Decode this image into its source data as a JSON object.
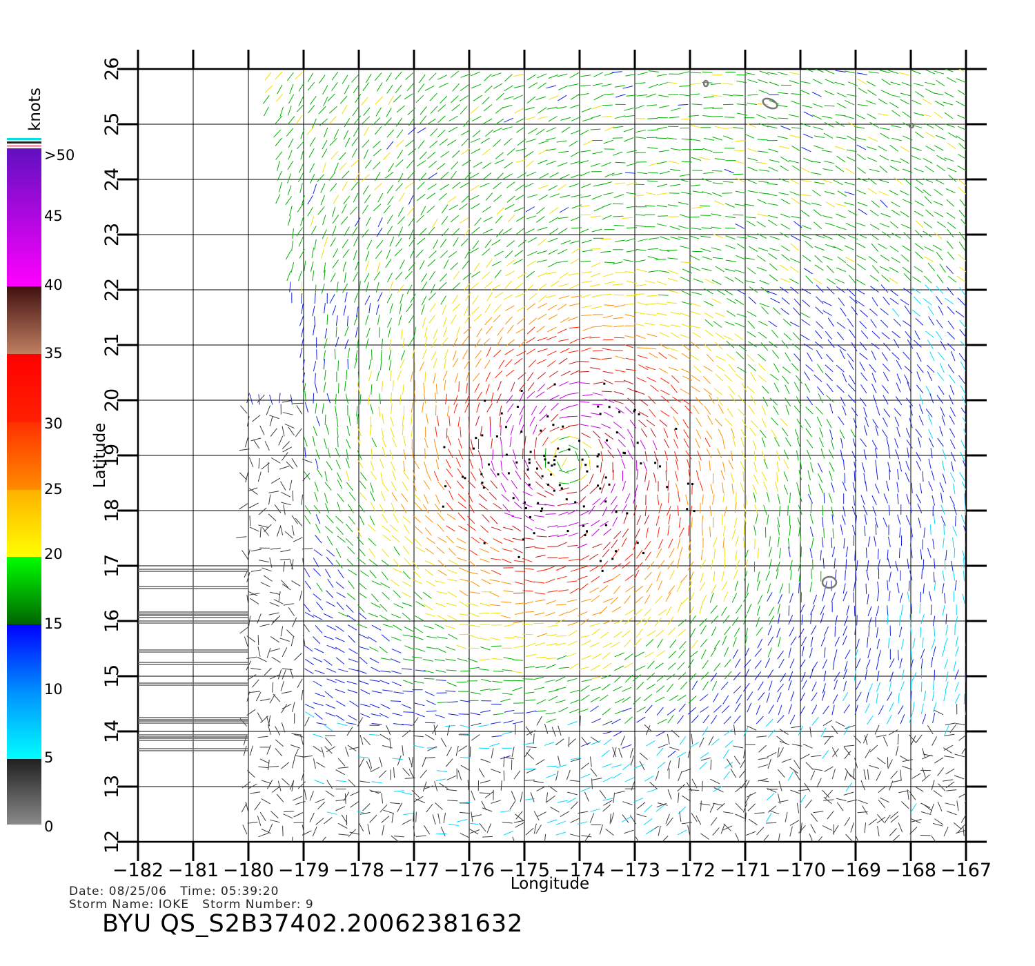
{
  "colorbar": {
    "unit": "knots",
    "labels": [
      ">50",
      "45",
      "40",
      "35",
      "30",
      "25",
      "20",
      "15",
      "10",
      "5",
      "0"
    ],
    "colors": {
      "gray_low": "#808080",
      "gray_high": "#202020",
      "cyan": "#00ffff",
      "blue": "#0000ff",
      "dark_green": "#006400",
      "green": "#00ff00",
      "yellow": "#ffff00",
      "orange": "#ff8c00",
      "red": "#ff0000",
      "brown_light": "#c08050",
      "brown_dark": "#401010",
      "magenta": "#ff00ff",
      "purple": "#6010c0"
    }
  },
  "map": {
    "xlabel": "Longitude",
    "ylabel": "Latitude",
    "lon_ticks": [
      "−182",
      "−181",
      "−180",
      "−179",
      "−178",
      "−177",
      "−176",
      "−175",
      "−174",
      "−173",
      "−172",
      "−171",
      "−170",
      "−169",
      "−168",
      "−167"
    ],
    "lat_ticks": [
      "12",
      "13",
      "14",
      "15",
      "16",
      "17",
      "18",
      "19",
      "20",
      "21",
      "22",
      "23",
      "24",
      "25",
      "26"
    ],
    "lon_range": [
      -182,
      -167
    ],
    "lat_range": [
      12,
      26
    ],
    "storm_center": {
      "lon": -174.2,
      "lat": 18.9
    }
  },
  "footer": {
    "date_line": "Date: 08/25/06   Time: 05:39:20",
    "storm_line": "Storm Name: IOKE   Storm Number: 9",
    "product": "BYU QS_S2B37402.20062381632"
  }
}
